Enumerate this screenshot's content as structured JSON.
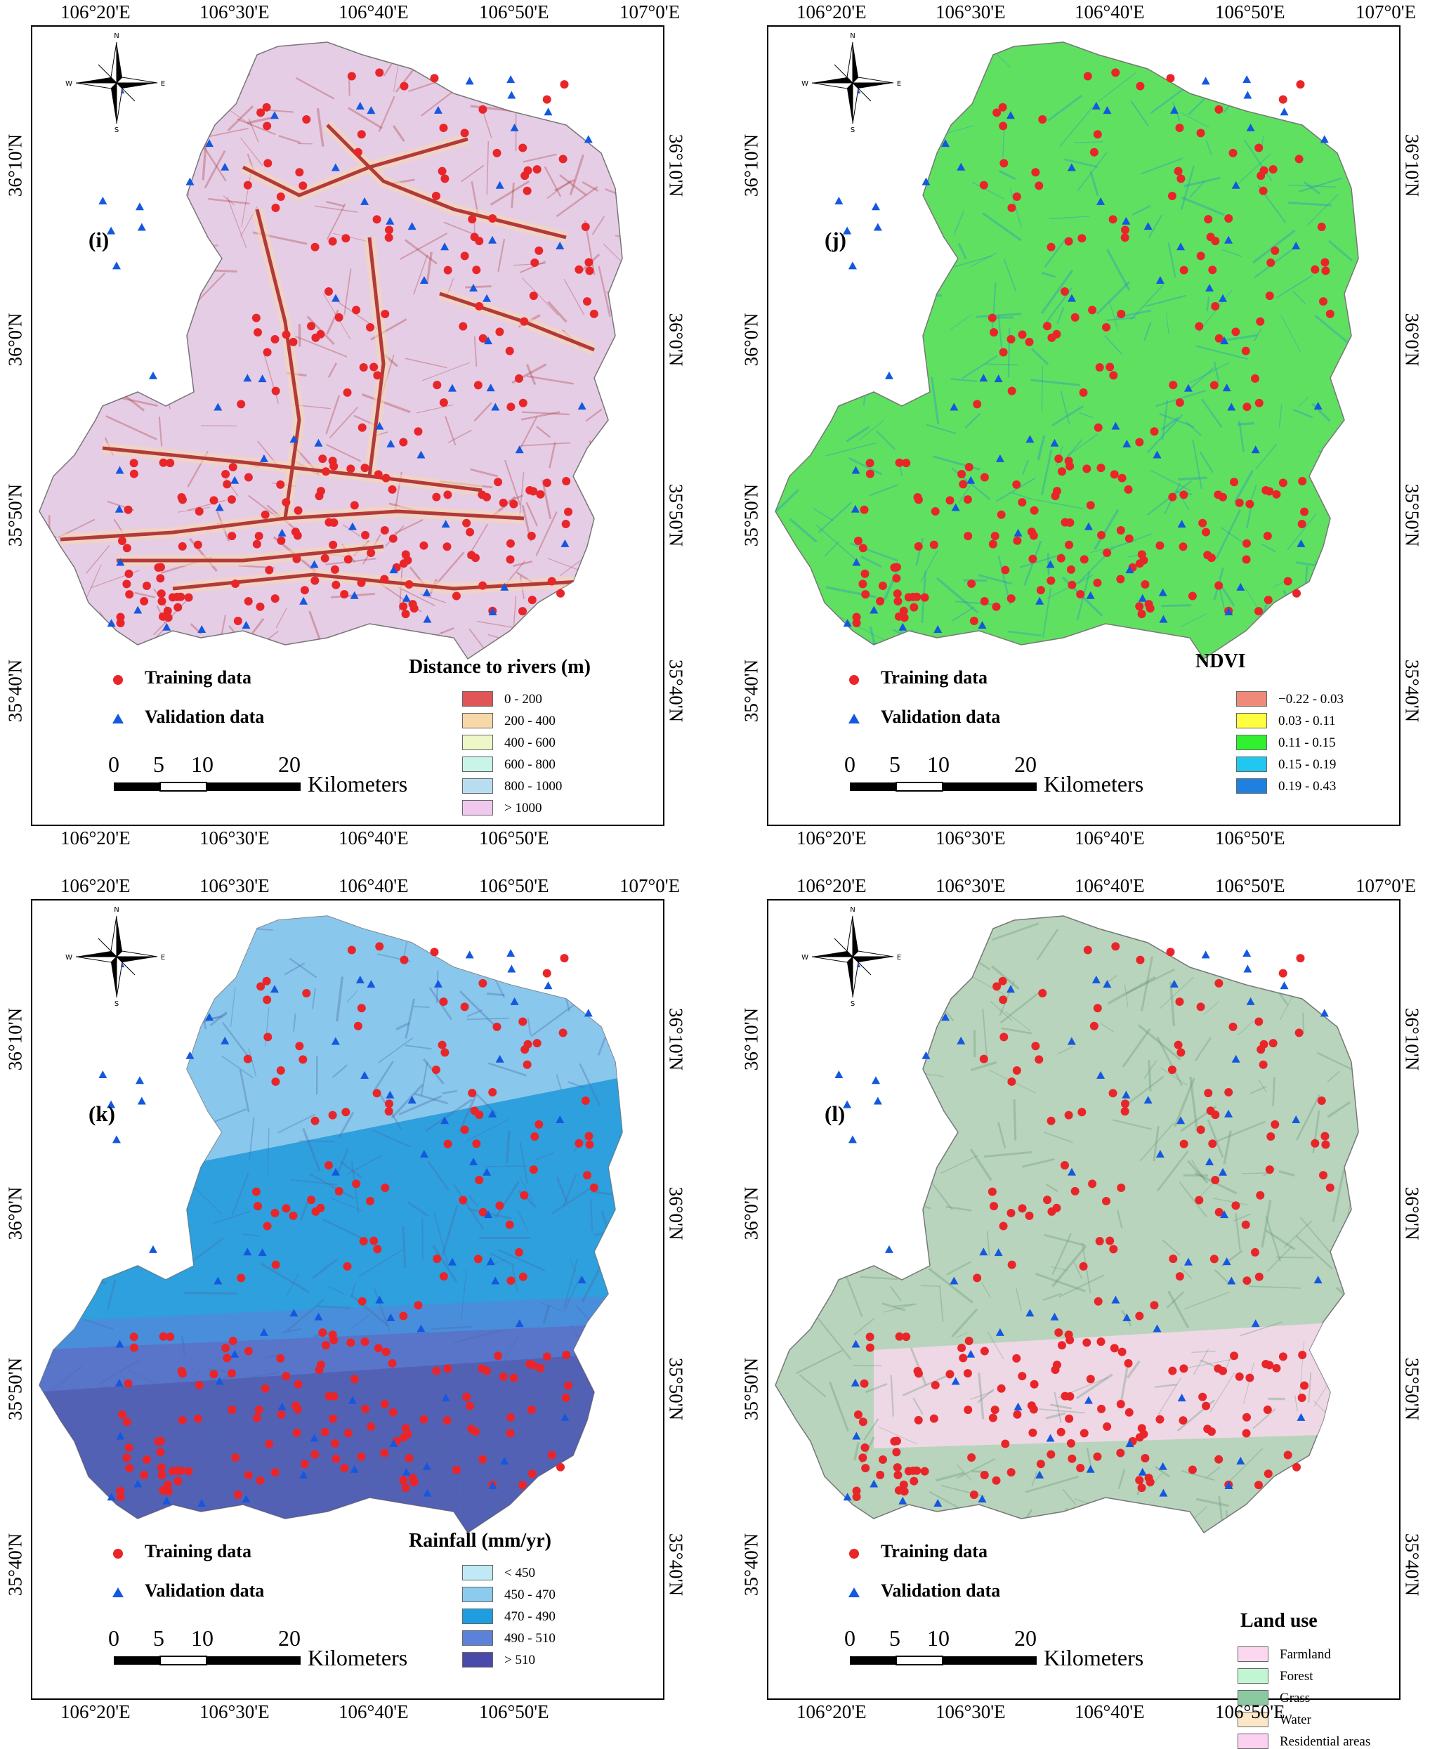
{
  "panels": [
    {
      "id": "i",
      "letter": "(i)",
      "legend_title": "Distance to rivers (m)",
      "classes": [
        "0 - 200",
        "200 - 400",
        "400 - 600",
        "600 - 800",
        "800 - 1000",
        "> 1000"
      ],
      "class_colors": [
        "#e05555",
        "#f8d8a8",
        "#eef7c8",
        "#c8f5e8",
        "#b8ddf0",
        "#f0c8ee"
      ],
      "base_color": "#e6cde6",
      "ridge_color": "#a84040"
    },
    {
      "id": "j",
      "letter": "(j)",
      "legend_title": "NDVI",
      "classes": [
        "−0.22 - 0.03",
        "0.03 - 0.11",
        "0.11 - 0.15",
        "0.15 - 0.19",
        "0.19 - 0.43"
      ],
      "class_colors": [
        "#ef8a7a",
        "#ffff40",
        "#30f030",
        "#20c8f0",
        "#2080e0"
      ],
      "base_color": "#60e060",
      "ridge_color": "#2090d0"
    },
    {
      "id": "k",
      "letter": "(k)",
      "legend_title": "Rainfall (mm/yr)",
      "classes": [
        "< 450",
        "450 - 470",
        "470 - 490",
        "490 - 510",
        "> 510"
      ],
      "class_colors": [
        "#bfeaf5",
        "#8ccaee",
        "#1e9ee0",
        "#5b82d8",
        "#4a4aaa"
      ],
      "base_color": "#6fa8d8",
      "ridge_color": "#4a6aa8"
    },
    {
      "id": "l",
      "letter": "(l)",
      "legend_title": "Land use",
      "classes": [
        "Farmland",
        "Forest",
        "Grass",
        "Water",
        "Residential areas"
      ],
      "class_colors": [
        "#fbd8f0",
        "#c2f5d2",
        "#8cc8a0",
        "#fbe6c8",
        "#fbd0f0"
      ],
      "base_color": "#b8d4bc",
      "ridge_color": "#6a9878"
    }
  ],
  "common": {
    "lon_top": [
      "106°20'E",
      "106°30'E",
      "106°40'E",
      "106°50'E",
      "107°0'E"
    ],
    "lon_bottom": [
      "106°20'E",
      "106°30'E",
      "106°40'E",
      "106°50'E"
    ],
    "lat_left": [
      "36°10'N",
      "36°0'N",
      "35°50'N",
      "35°40'N"
    ],
    "lat_right": [
      "36°10'N",
      "36°0'N",
      "35°50'N",
      "35°40'N"
    ],
    "training_label": "Training data",
    "validation_label": "Validation data",
    "training_color": "#e8262a",
    "validation_color": "#1458e0",
    "scale_numbers": [
      "0",
      "5",
      "10",
      "20"
    ],
    "scale_unit": "Kilometers",
    "compass": {
      "n": "N",
      "s": "S",
      "e": "E",
      "w": "W"
    }
  }
}
